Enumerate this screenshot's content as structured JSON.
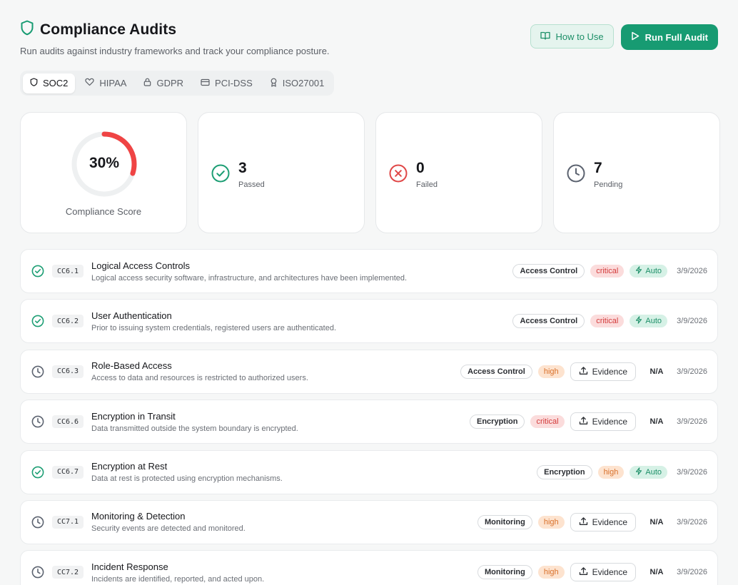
{
  "header": {
    "title": "Compliance Audits",
    "subtitle": "Run audits against industry frameworks and track your compliance posture.",
    "help_label": "How to Use",
    "run_label": "Run Full Audit"
  },
  "tabs": [
    {
      "label": "SOC2",
      "icon": "shield-icon",
      "active": true
    },
    {
      "label": "HIPAA",
      "icon": "heart-icon",
      "active": false
    },
    {
      "label": "GDPR",
      "icon": "lock-icon",
      "active": false
    },
    {
      "label": "PCI-DSS",
      "icon": "credit-card-icon",
      "active": false
    },
    {
      "label": "ISO27001",
      "icon": "award-icon",
      "active": false
    }
  ],
  "summary": {
    "score": "30%",
    "score_fraction": 0.3,
    "score_label": "Compliance Score",
    "passed_count": "3",
    "passed_label": "Passed",
    "failed_count": "0",
    "failed_label": "Failed",
    "pending_count": "7",
    "pending_label": "Pending"
  },
  "colors": {
    "accent": "#179b72",
    "pass": "#1d9e74",
    "fail": "#e04848",
    "pending": "#5c6370",
    "score_arc": "#ef4444"
  },
  "controls": [
    {
      "status": "passed",
      "code": "CC6.1",
      "title": "Logical Access Controls",
      "description": "Logical access security software, infrastructure, and architectures have been implemented.",
      "category": "Access Control",
      "severity": "critical",
      "auto_label": "Auto",
      "date": "3/9/2026"
    },
    {
      "status": "passed",
      "code": "CC6.2",
      "title": "User Authentication",
      "description": "Prior to issuing system credentials, registered users are authenticated.",
      "category": "Access Control",
      "severity": "critical",
      "auto_label": "Auto",
      "date": "3/9/2026"
    },
    {
      "status": "pending",
      "code": "CC6.3",
      "title": "Role-Based Access",
      "description": "Access to data and resources is restricted to authorized users.",
      "category": "Access Control",
      "severity": "high",
      "evidence_label": "Evidence",
      "na": "N/A",
      "date": "3/9/2026"
    },
    {
      "status": "pending",
      "code": "CC6.6",
      "title": "Encryption in Transit",
      "description": "Data transmitted outside the system boundary is encrypted.",
      "category": "Encryption",
      "severity": "critical",
      "evidence_label": "Evidence",
      "na": "N/A",
      "date": "3/9/2026"
    },
    {
      "status": "passed",
      "code": "CC6.7",
      "title": "Encryption at Rest",
      "description": "Data at rest is protected using encryption mechanisms.",
      "category": "Encryption",
      "severity": "high",
      "auto_label": "Auto",
      "date": "3/9/2026"
    },
    {
      "status": "pending",
      "code": "CC7.1",
      "title": "Monitoring & Detection",
      "description": "Security events are detected and monitored.",
      "category": "Monitoring",
      "severity": "high",
      "evidence_label": "Evidence",
      "na": "N/A",
      "date": "3/9/2026"
    },
    {
      "status": "pending",
      "code": "CC7.2",
      "title": "Incident Response",
      "description": "Incidents are identified, reported, and acted upon.",
      "category": "Monitoring",
      "severity": "high",
      "evidence_label": "Evidence",
      "na": "N/A",
      "date": "3/9/2026"
    }
  ]
}
